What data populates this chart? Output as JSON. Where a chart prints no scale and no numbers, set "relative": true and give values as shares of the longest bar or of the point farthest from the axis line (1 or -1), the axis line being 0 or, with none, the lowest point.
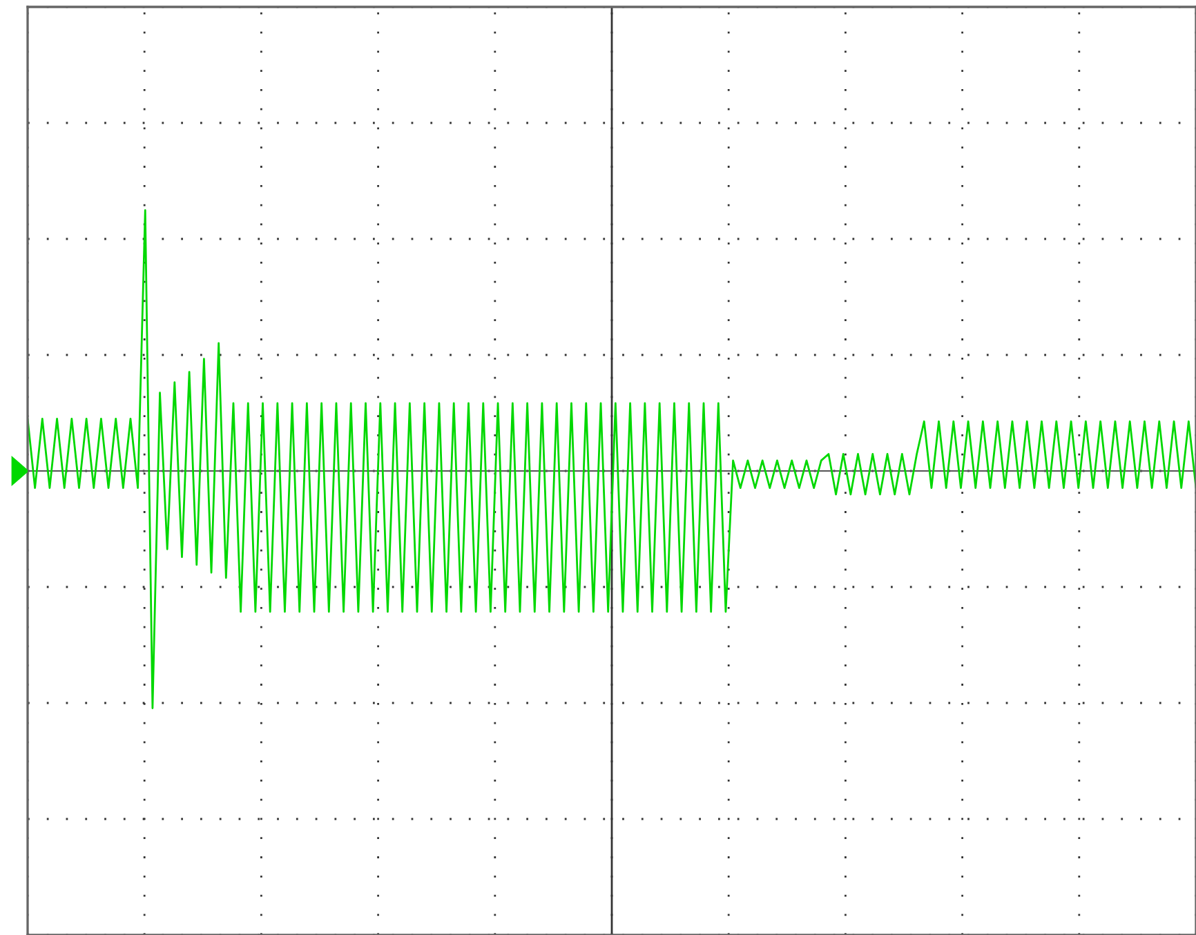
{
  "chart_data": {
    "type": "line",
    "relative": true,
    "grid": true,
    "legend": false,
    "marker": "none",
    "line_style": "solid",
    "categories": [
      null,
      null,
      null,
      null,
      null,
      null,
      null,
      null,
      null,
      null,
      null,
      null,
      null,
      null,
      null,
      null,
      null,
      null,
      null,
      null,
      null,
      null,
      null,
      null,
      null,
      null,
      null,
      null,
      null,
      null,
      null,
      null,
      null,
      null,
      null,
      null,
      null,
      null,
      null,
      null,
      null,
      null,
      null,
      null,
      null,
      null,
      null,
      null,
      null,
      null,
      null,
      null,
      null,
      null,
      null,
      null,
      null,
      null,
      null,
      null,
      null,
      null,
      null,
      null,
      null,
      null,
      null,
      null,
      null,
      null,
      null,
      null,
      null,
      null,
      null,
      null,
      null,
      null,
      null,
      null,
      null,
      null,
      null,
      null,
      null,
      null,
      null,
      null,
      null,
      null,
      null,
      null,
      null,
      null,
      null,
      null,
      null,
      null,
      null,
      null,
      null,
      null,
      null,
      null,
      null,
      null,
      null,
      null,
      null,
      null,
      null,
      null,
      null,
      null,
      null,
      null,
      null,
      null,
      null,
      null,
      null,
      null,
      null,
      null,
      null,
      null,
      null,
      null,
      null,
      null,
      null,
      null,
      null,
      null,
      null,
      null,
      null,
      null,
      null,
      null,
      null,
      null,
      null,
      null,
      null,
      null,
      null,
      null,
      null,
      null,
      null,
      null,
      null,
      null,
      null,
      null,
      null,
      null,
      null,
      null
    ],
    "series": [
      {
        "color": "#00d800",
        "values": [
          0.2,
          -0.065,
          0.2,
          -0.065,
          0.2,
          -0.065,
          0.2,
          -0.065,
          0.2,
          -0.065,
          0.2,
          -0.065,
          0.2,
          -0.065,
          0.2,
          -0.065,
          1.0,
          -0.91,
          0.3,
          -0.3,
          0.34,
          -0.33,
          0.38,
          -0.36,
          0.43,
          -0.39,
          0.49,
          -0.41,
          0.26,
          -0.54,
          0.26,
          -0.54,
          0.26,
          -0.54,
          0.26,
          -0.54,
          0.26,
          -0.54,
          0.26,
          -0.54,
          0.26,
          -0.54,
          0.26,
          -0.54,
          0.26,
          -0.54,
          0.26,
          -0.54,
          0.26,
          -0.54,
          0.26,
          -0.54,
          0.26,
          -0.54,
          0.26,
          -0.54,
          0.26,
          -0.54,
          0.26,
          -0.54,
          0.26,
          -0.54,
          0.26,
          -0.54,
          0.26,
          -0.54,
          0.26,
          -0.54,
          0.26,
          -0.54,
          0.26,
          -0.54,
          0.26,
          -0.54,
          0.26,
          -0.54,
          0.26,
          -0.54,
          0.26,
          -0.54,
          0.26,
          -0.54,
          0.26,
          -0.54,
          0.26,
          -0.54,
          0.26,
          -0.54,
          0.26,
          -0.54,
          0.26,
          -0.54,
          0.26,
          -0.54,
          0.26,
          -0.54,
          0.04,
          -0.065,
          0.04,
          -0.065,
          0.04,
          -0.065,
          0.04,
          -0.065,
          0.04,
          -0.065,
          0.04,
          -0.065,
          0.04,
          0.065,
          -0.09,
          0.065,
          -0.09,
          0.065,
          -0.09,
          0.065,
          -0.09,
          0.065,
          -0.09,
          0.065,
          -0.09,
          0.065,
          0.19,
          -0.065,
          0.19,
          -0.065,
          0.19,
          -0.065,
          0.19,
          -0.065,
          0.19,
          -0.065,
          0.19,
          -0.065,
          0.19,
          -0.065,
          0.19,
          -0.065,
          0.19,
          -0.065,
          0.19,
          -0.065,
          0.19,
          -0.065,
          0.19,
          -0.065,
          0.19,
          -0.065,
          0.19,
          -0.065,
          0.19,
          -0.065,
          0.19,
          -0.065,
          0.19,
          -0.065,
          0.19,
          -0.065,
          0.19,
          -0.065
        ]
      }
    ]
  }
}
